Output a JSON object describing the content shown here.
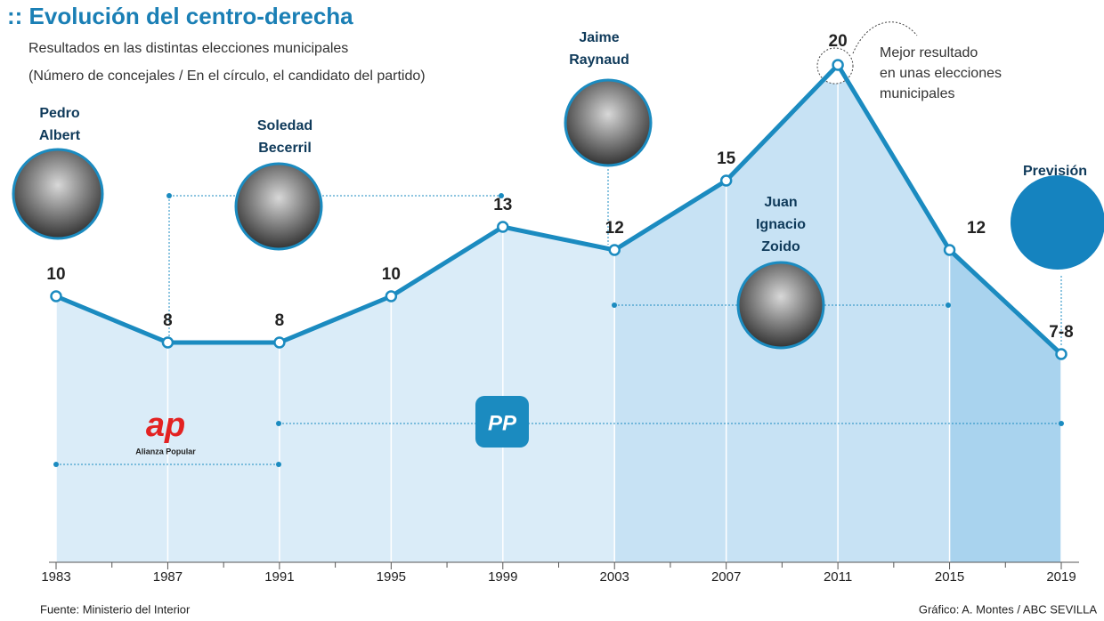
{
  "chart_data": {
    "type": "line",
    "title": ":: Evolución del centro-derecha",
    "subtitle": [
      "Resultados en las distintas elecciones municipales",
      "(Número de concejales / En el círculo, el candidato del partido)"
    ],
    "x": [
      1983,
      1987,
      1991,
      1995,
      1999,
      2003,
      2007,
      2011,
      2015,
      2019
    ],
    "values": [
      10,
      8,
      8,
      10,
      13,
      12,
      15,
      20,
      12,
      7.5
    ],
    "value_labels": [
      "10",
      "8",
      "8",
      "10",
      "13",
      "12",
      "15",
      "20",
      "12",
      "7-8"
    ],
    "xlim": [
      1983,
      2019
    ],
    "xticks": [
      1983,
      1987,
      1991,
      1995,
      1999,
      2003,
      2007,
      2011,
      2015,
      2019
    ],
    "ylim": [
      -1.5,
      21.5
    ],
    "color": "#1b8bc0",
    "candidates": [
      {
        "name": [
          "Pedro",
          "Albert"
        ]
      },
      {
        "name": [
          "Soledad",
          "Becerril"
        ]
      },
      {
        "name": [
          "Jaime",
          "Raynaud"
        ]
      },
      {
        "name": [
          "Juan",
          "Ignacio",
          "Zoido"
        ]
      }
    ],
    "parties": [
      {
        "logo": "ap",
        "caption": "Alianza Popular"
      },
      {
        "logo": "PP"
      }
    ],
    "annotation": [
      "Mejor resultado",
      "en unas elecciones",
      "municipales"
    ],
    "forecast_label": "Previsión",
    "source": "Fuente: Ministerio del Interior",
    "credit": "Gráfico: A. Montes / ABC SEVILLA"
  }
}
